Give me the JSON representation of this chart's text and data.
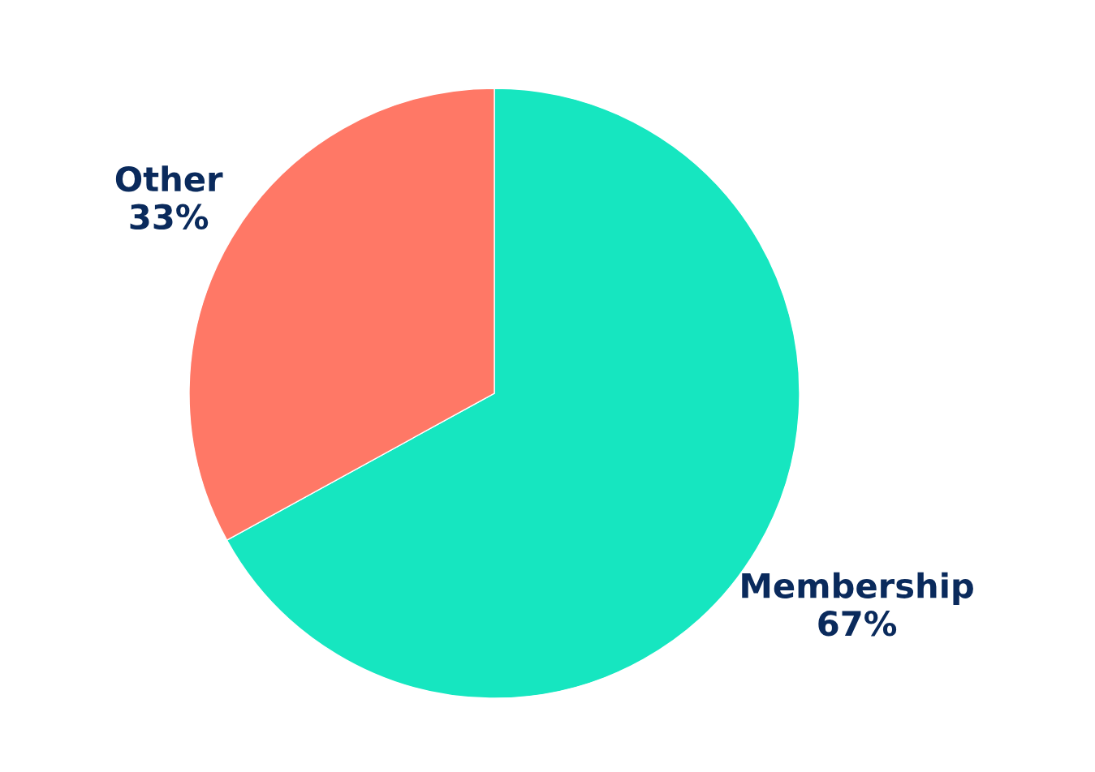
{
  "chart_data": {
    "type": "pie",
    "categories": [
      "Membership",
      "Other"
    ],
    "values": [
      67,
      33
    ],
    "colors": [
      "#16e6c0",
      "#ff7866"
    ],
    "value_labels": [
      "67%",
      "33%"
    ]
  }
}
